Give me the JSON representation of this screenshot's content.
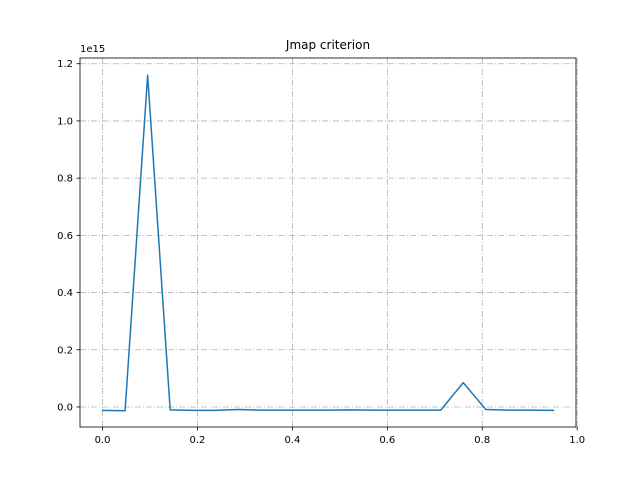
{
  "chart_data": {
    "type": "line",
    "title": "Jmap criterion",
    "xlabel": "",
    "ylabel": "",
    "y_offset_label": "1e15",
    "xlim": [
      -0.0475,
      0.9975
    ],
    "ylim": [
      -70000000000000.0,
      1220000000000000.0
    ],
    "x_ticks": [
      0.0,
      0.2,
      0.4,
      0.6,
      0.8,
      1.0
    ],
    "x_tick_labels": [
      "0.0",
      "0.2",
      "0.4",
      "0.6",
      "0.8",
      "1.0"
    ],
    "y_ticks": [
      0,
      200000000000000.0,
      400000000000000.0,
      600000000000000.0,
      800000000000000.0,
      1000000000000000.0,
      1200000000000000.0
    ],
    "y_tick_labels": [
      "0.0",
      "0.2",
      "0.4",
      "0.6",
      "0.8",
      "1.0",
      "1.2"
    ],
    "grid": true,
    "series": [
      {
        "color": "#1f77b4",
        "x": [
          0.0,
          0.0475,
          0.095,
          0.1425,
          0.19,
          0.2375,
          0.285,
          0.3325,
          0.38,
          0.4275,
          0.475,
          0.5225,
          0.57,
          0.6175,
          0.665,
          0.7125,
          0.76,
          0.8075,
          0.855,
          0.9025,
          0.95
        ],
        "y": [
          -12000000000000.0,
          -13000000000000.0,
          1160000000000000.0,
          -10000000000000.0,
          -12000000000000.0,
          -12000000000000.0,
          -9000000000000.0,
          -11000000000000.0,
          -11000000000000.0,
          -11000000000000.0,
          -11000000000000.0,
          -10000000000000.0,
          -11000000000000.0,
          -11000000000000.0,
          -11000000000000.0,
          -11000000000000.0,
          85000000000000.0,
          -9000000000000.0,
          -11000000000000.0,
          -11000000000000.0,
          -12000000000000.0
        ]
      }
    ]
  }
}
